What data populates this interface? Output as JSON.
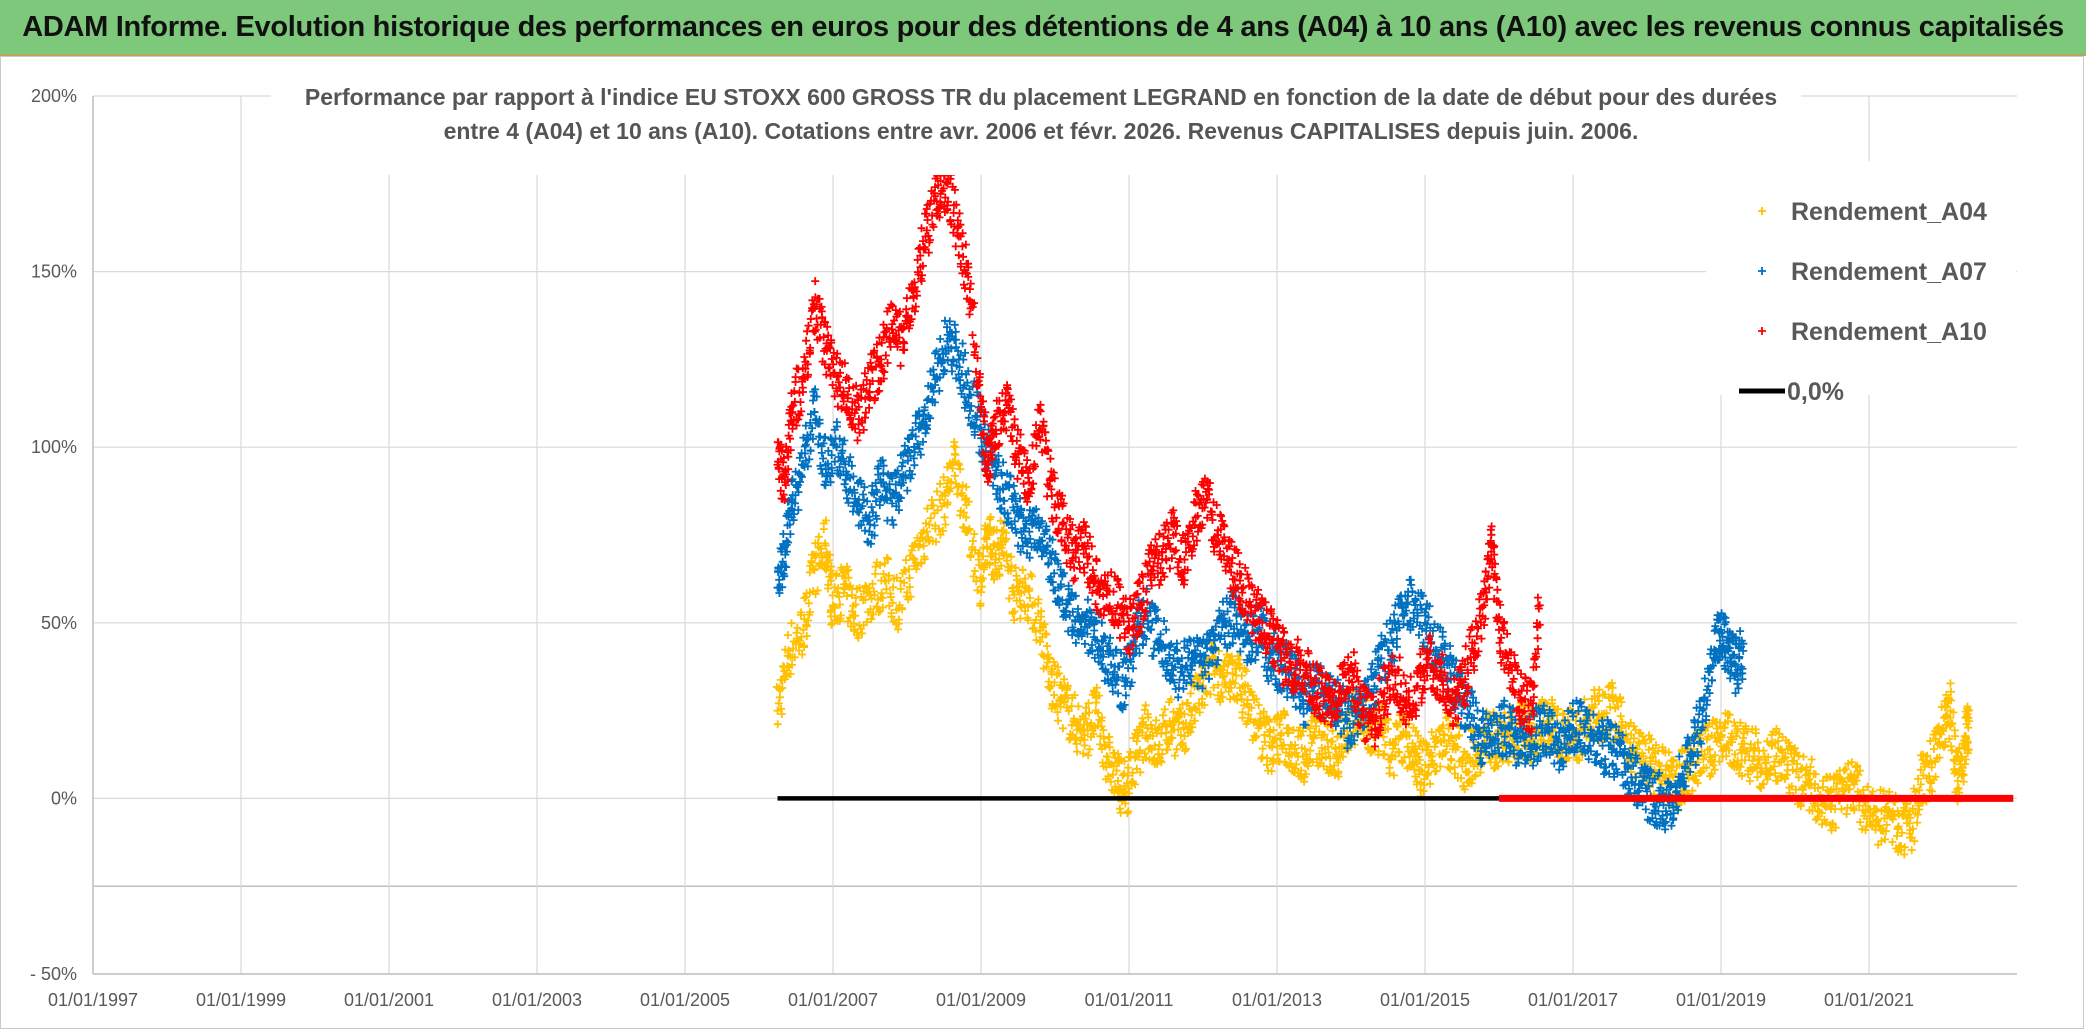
{
  "banner": {
    "title": "ADAM Informe. Evolution historique des performances en euros pour des détentions de 4 ans (A04) à 10 ans (A10) avec les revenus connus capitalisés"
  },
  "chart_data": {
    "type": "scatter",
    "title": "Performance par rapport à l'indice EU STOXX 600 GROSS TR  du placement LEGRAND en fonction de la date de début pour des durées",
    "subtitle": "entre 4 (A04) et 10 ans (A10). Cotations entre avr. 2006 et févr. 2026. Revenus CAPITALISES depuis juin. 2006.",
    "xlabel": "",
    "ylabel": "",
    "x_unit": "year",
    "xlim": [
      1997.0,
      2023.0
    ],
    "ylim": [
      -50,
      200
    ],
    "grid": true,
    "y_ticks": [
      {
        "value": 200,
        "label": "200%"
      },
      {
        "value": 150,
        "label": "150%"
      },
      {
        "value": 100,
        "label": "100%"
      },
      {
        "value": 50,
        "label": "50%"
      },
      {
        "value": 0,
        "label": "0%"
      },
      {
        "value": -50,
        "label": "- 50%"
      }
    ],
    "x_ticks": [
      {
        "value": 1997,
        "label": "01/01/1997"
      },
      {
        "value": 1999,
        "label": "01/01/1999"
      },
      {
        "value": 2001,
        "label": "01/01/2001"
      },
      {
        "value": 2003,
        "label": "01/01/2003"
      },
      {
        "value": 2005,
        "label": "01/01/2005"
      },
      {
        "value": 2007,
        "label": "01/01/2007"
      },
      {
        "value": 2009,
        "label": "01/01/2009"
      },
      {
        "value": 2011,
        "label": "01/01/2011"
      },
      {
        "value": 2013,
        "label": "01/01/2013"
      },
      {
        "value": 2015,
        "label": "01/01/2015"
      },
      {
        "value": 2017,
        "label": "01/01/2017"
      },
      {
        "value": 2019,
        "label": "01/01/2019"
      },
      {
        "value": 2021,
        "label": "01/01/2021"
      }
    ],
    "legend_position": "top-right",
    "series": [
      {
        "name": "Rendement_A04",
        "color": "#ffc000",
        "marker": "+",
        "points": [
          [
            2006.25,
            25
          ],
          [
            2006.4,
            42
          ],
          [
            2006.6,
            48
          ],
          [
            2006.75,
            65
          ],
          [
            2006.9,
            72
          ],
          [
            2007.0,
            55
          ],
          [
            2007.15,
            60
          ],
          [
            2007.3,
            52
          ],
          [
            2007.5,
            58
          ],
          [
            2007.7,
            62
          ],
          [
            2007.9,
            55
          ],
          [
            2008.1,
            68
          ],
          [
            2008.3,
            78
          ],
          [
            2008.5,
            84
          ],
          [
            2008.65,
            96
          ],
          [
            2008.8,
            80
          ],
          [
            2009.0,
            62
          ],
          [
            2009.1,
            75
          ],
          [
            2009.2,
            68
          ],
          [
            2009.3,
            74
          ],
          [
            2009.45,
            58
          ],
          [
            2009.6,
            60
          ],
          [
            2009.8,
            50
          ],
          [
            2009.95,
            32
          ],
          [
            2010.1,
            28
          ],
          [
            2010.25,
            22
          ],
          [
            2010.4,
            18
          ],
          [
            2010.55,
            25
          ],
          [
            2010.7,
            12
          ],
          [
            2010.85,
            5
          ],
          [
            2010.95,
            2
          ],
          [
            2011.1,
            12
          ],
          [
            2011.25,
            20
          ],
          [
            2011.4,
            14
          ],
          [
            2011.55,
            22
          ],
          [
            2011.7,
            18
          ],
          [
            2011.85,
            25
          ],
          [
            2012.0,
            32
          ],
          [
            2012.15,
            38
          ],
          [
            2012.3,
            33
          ],
          [
            2012.45,
            35
          ],
          [
            2012.6,
            28
          ],
          [
            2012.75,
            20
          ],
          [
            2012.9,
            15
          ],
          [
            2013.05,
            18
          ],
          [
            2013.2,
            15
          ],
          [
            2013.35,
            12
          ],
          [
            2013.5,
            18
          ],
          [
            2013.65,
            14
          ],
          [
            2013.8,
            12
          ],
          [
            2013.95,
            20
          ],
          [
            2014.1,
            24
          ],
          [
            2014.25,
            18
          ],
          [
            2014.4,
            20
          ],
          [
            2014.55,
            12
          ],
          [
            2014.7,
            18
          ],
          [
            2014.85,
            14
          ],
          [
            2014.95,
            8
          ],
          [
            2015.1,
            12
          ],
          [
            2015.25,
            18
          ],
          [
            2015.4,
            15
          ],
          [
            2015.55,
            10
          ],
          [
            2015.7,
            14
          ],
          [
            2015.85,
            18
          ],
          [
            2016.0,
            15
          ],
          [
            2016.15,
            18
          ],
          [
            2016.3,
            20
          ],
          [
            2016.45,
            18
          ],
          [
            2016.6,
            22
          ],
          [
            2016.75,
            20
          ],
          [
            2016.9,
            18
          ],
          [
            2017.05,
            18
          ],
          [
            2017.2,
            22
          ],
          [
            2017.35,
            24
          ],
          [
            2017.5,
            26
          ],
          [
            2017.65,
            20
          ],
          [
            2017.8,
            14
          ],
          [
            2017.95,
            12
          ],
          [
            2018.1,
            8
          ],
          [
            2018.25,
            6
          ],
          [
            2018.4,
            4
          ],
          [
            2018.55,
            8
          ],
          [
            2018.7,
            12
          ],
          [
            2018.85,
            14
          ],
          [
            2019.0,
            18
          ],
          [
            2019.15,
            16
          ],
          [
            2019.3,
            14
          ],
          [
            2019.45,
            12
          ],
          [
            2019.6,
            10
          ],
          [
            2019.75,
            12
          ],
          [
            2019.9,
            8
          ],
          [
            2020.05,
            6
          ],
          [
            2020.2,
            4
          ],
          [
            2020.35,
            0
          ],
          [
            2020.5,
            -2
          ],
          [
            2020.65,
            2
          ],
          [
            2020.8,
            4
          ],
          [
            2020.95,
            -4
          ],
          [
            2021.1,
            -6
          ],
          [
            2021.25,
            -4
          ],
          [
            2021.4,
            -8
          ],
          [
            2021.55,
            -10
          ],
          [
            2021.7,
            4
          ],
          [
            2021.85,
            10
          ],
          [
            2022.0,
            20
          ],
          [
            2022.1,
            25
          ],
          [
            2022.2,
            5
          ],
          [
            2022.3,
            15
          ],
          [
            2022.35,
            22
          ]
        ]
      },
      {
        "name": "Rendement_A07",
        "color": "#0070c0",
        "marker": "+",
        "points": [
          [
            2006.25,
            60
          ],
          [
            2006.35,
            72
          ],
          [
            2006.45,
            85
          ],
          [
            2006.6,
            95
          ],
          [
            2006.75,
            110
          ],
          [
            2006.9,
            95
          ],
          [
            2007.05,
            100
          ],
          [
            2007.2,
            92
          ],
          [
            2007.35,
            85
          ],
          [
            2007.5,
            78
          ],
          [
            2007.65,
            90
          ],
          [
            2007.8,
            84
          ],
          [
            2007.95,
            92
          ],
          [
            2008.1,
            100
          ],
          [
            2008.25,
            108
          ],
          [
            2008.4,
            120
          ],
          [
            2008.55,
            132
          ],
          [
            2008.7,
            125
          ],
          [
            2008.85,
            115
          ],
          [
            2009.0,
            105
          ],
          [
            2009.15,
            95
          ],
          [
            2009.3,
            88
          ],
          [
            2009.45,
            82
          ],
          [
            2009.6,
            74
          ],
          [
            2009.75,
            78
          ],
          [
            2009.9,
            72
          ],
          [
            2010.05,
            60
          ],
          [
            2010.2,
            52
          ],
          [
            2010.35,
            48
          ],
          [
            2010.5,
            50
          ],
          [
            2010.65,
            42
          ],
          [
            2010.8,
            36
          ],
          [
            2010.95,
            32
          ],
          [
            2011.1,
            48
          ],
          [
            2011.25,
            52
          ],
          [
            2011.4,
            45
          ],
          [
            2011.55,
            40
          ],
          [
            2011.7,
            36
          ],
          [
            2011.85,
            40
          ],
          [
            2012.0,
            38
          ],
          [
            2012.15,
            45
          ],
          [
            2012.3,
            50
          ],
          [
            2012.45,
            52
          ],
          [
            2012.6,
            45
          ],
          [
            2012.75,
            48
          ],
          [
            2012.9,
            40
          ],
          [
            2013.05,
            38
          ],
          [
            2013.2,
            35
          ],
          [
            2013.35,
            28
          ],
          [
            2013.5,
            32
          ],
          [
            2013.65,
            30
          ],
          [
            2013.8,
            28
          ],
          [
            2013.95,
            22
          ],
          [
            2014.1,
            25
          ],
          [
            2014.25,
            30
          ],
          [
            2014.4,
            38
          ],
          [
            2014.55,
            45
          ],
          [
            2014.7,
            52
          ],
          [
            2014.85,
            56
          ],
          [
            2015.0,
            50
          ],
          [
            2015.15,
            42
          ],
          [
            2015.3,
            38
          ],
          [
            2015.45,
            30
          ],
          [
            2015.6,
            24
          ],
          [
            2015.75,
            18
          ],
          [
            2015.9,
            15
          ],
          [
            2016.05,
            20
          ],
          [
            2016.2,
            18
          ],
          [
            2016.35,
            15
          ],
          [
            2016.5,
            18
          ],
          [
            2016.65,
            20
          ],
          [
            2016.8,
            16
          ],
          [
            2016.95,
            18
          ],
          [
            2017.1,
            22
          ],
          [
            2017.25,
            18
          ],
          [
            2017.4,
            15
          ],
          [
            2017.55,
            14
          ],
          [
            2017.7,
            10
          ],
          [
            2017.85,
            6
          ],
          [
            2018.0,
            2
          ],
          [
            2018.15,
            0
          ],
          [
            2018.3,
            -2
          ],
          [
            2018.45,
            5
          ],
          [
            2018.6,
            12
          ],
          [
            2018.75,
            25
          ],
          [
            2018.9,
            40
          ],
          [
            2019.0,
            48
          ],
          [
            2019.1,
            42
          ],
          [
            2019.2,
            38
          ],
          [
            2019.3,
            42
          ]
        ]
      },
      {
        "name": "Rendement_A10",
        "color": "#ff0000",
        "marker": "+",
        "points": [
          [
            2006.25,
            95
          ],
          [
            2006.35,
            90
          ],
          [
            2006.45,
            110
          ],
          [
            2006.6,
            120
          ],
          [
            2006.75,
            140
          ],
          [
            2006.9,
            128
          ],
          [
            2007.05,
            120
          ],
          [
            2007.2,
            115
          ],
          [
            2007.35,
            108
          ],
          [
            2007.5,
            118
          ],
          [
            2007.65,
            125
          ],
          [
            2007.8,
            135
          ],
          [
            2007.95,
            130
          ],
          [
            2008.1,
            145
          ],
          [
            2008.25,
            160
          ],
          [
            2008.4,
            170
          ],
          [
            2008.55,
            175
          ],
          [
            2008.7,
            160
          ],
          [
            2008.85,
            145
          ],
          [
            2009.0,
            110
          ],
          [
            2009.1,
            95
          ],
          [
            2009.2,
            105
          ],
          [
            2009.35,
            112
          ],
          [
            2009.5,
            98
          ],
          [
            2009.65,
            90
          ],
          [
            2009.8,
            105
          ],
          [
            2009.95,
            88
          ],
          [
            2010.1,
            78
          ],
          [
            2010.25,
            70
          ],
          [
            2010.4,
            72
          ],
          [
            2010.55,
            62
          ],
          [
            2010.7,
            58
          ],
          [
            2010.85,
            55
          ],
          [
            2011.0,
            48
          ],
          [
            2011.15,
            55
          ],
          [
            2011.3,
            65
          ],
          [
            2011.45,
            70
          ],
          [
            2011.6,
            75
          ],
          [
            2011.75,
            68
          ],
          [
            2011.9,
            80
          ],
          [
            2012.05,
            85
          ],
          [
            2012.2,
            75
          ],
          [
            2012.35,
            68
          ],
          [
            2012.5,
            62
          ],
          [
            2012.65,
            55
          ],
          [
            2012.8,
            50
          ],
          [
            2012.95,
            45
          ],
          [
            2013.1,
            40
          ],
          [
            2013.25,
            38
          ],
          [
            2013.4,
            35
          ],
          [
            2013.55,
            30
          ],
          [
            2013.7,
            28
          ],
          [
            2013.85,
            32
          ],
          [
            2014.0,
            38
          ],
          [
            2014.15,
            25
          ],
          [
            2014.3,
            22
          ],
          [
            2014.45,
            30
          ],
          [
            2014.6,
            35
          ],
          [
            2014.75,
            28
          ],
          [
            2014.9,
            32
          ],
          [
            2015.05,
            40
          ],
          [
            2015.2,
            35
          ],
          [
            2015.35,
            28
          ],
          [
            2015.5,
            32
          ],
          [
            2015.65,
            42
          ],
          [
            2015.8,
            55
          ],
          [
            2015.9,
            72
          ],
          [
            2016.0,
            48
          ],
          [
            2016.15,
            38
          ],
          [
            2016.3,
            28
          ],
          [
            2016.45,
            25
          ],
          [
            2016.55,
            55
          ]
        ]
      },
      {
        "name": "0,0%",
        "color": "#000000",
        "type": "line",
        "points": [
          [
            2006.25,
            0
          ],
          [
            2016.0,
            0
          ]
        ]
      },
      {
        "name": "Rendement_A10 (zero band)",
        "color": "#ff0000",
        "type": "line",
        "legend": false,
        "points": [
          [
            2016.0,
            0
          ],
          [
            2022.95,
            0
          ]
        ]
      }
    ]
  }
}
